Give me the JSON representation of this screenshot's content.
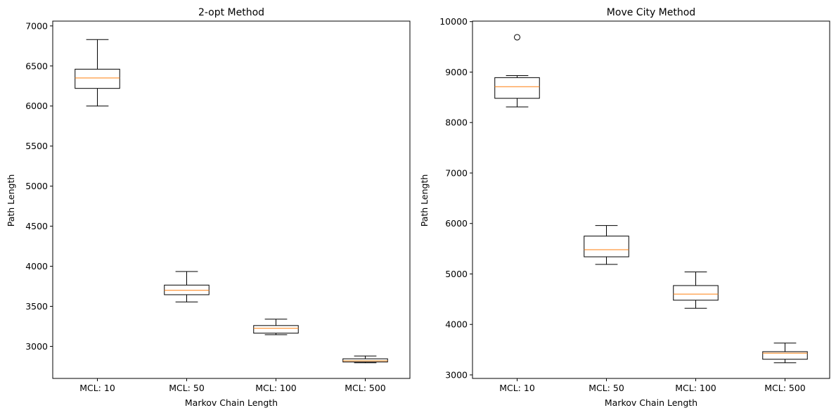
{
  "chart_data": [
    {
      "type": "box",
      "title": "2-opt Method",
      "xlabel": "Markov Chain Length",
      "ylabel": "Path Length",
      "ylim": [
        2600,
        7060
      ],
      "yticks": [
        3000,
        3500,
        4000,
        4500,
        5000,
        5500,
        6000,
        6500,
        7000
      ],
      "categories": [
        "MCL: 10",
        "MCL: 50",
        "MCL: 100",
        "MCL: 500"
      ],
      "boxes": [
        {
          "min": 6000,
          "q1": 6220,
          "median": 6350,
          "q3": 6460,
          "max": 6830,
          "outliers": []
        },
        {
          "min": 3555,
          "q1": 3645,
          "median": 3700,
          "q3": 3765,
          "max": 3935,
          "outliers": []
        },
        {
          "min": 3145,
          "q1": 3165,
          "median": 3225,
          "q3": 3260,
          "max": 3340,
          "outliers": []
        },
        {
          "min": 2795,
          "q1": 2805,
          "median": 2820,
          "q3": 2845,
          "max": 2880,
          "outliers": []
        }
      ],
      "grid": false
    },
    {
      "type": "box",
      "title": "Move City Method",
      "xlabel": "Markov Chain Length",
      "ylabel": "Path Length",
      "ylim": [
        2930,
        10010
      ],
      "yticks": [
        3000,
        4000,
        5000,
        6000,
        7000,
        8000,
        9000,
        10000
      ],
      "categories": [
        "MCL: 10",
        "MCL: 50",
        "MCL: 100",
        "MCL: 500"
      ],
      "boxes": [
        {
          "min": 8310,
          "q1": 8480,
          "median": 8710,
          "q3": 8890,
          "max": 8930,
          "outliers": [
            9690
          ]
        },
        {
          "min": 5190,
          "q1": 5340,
          "median": 5480,
          "q3": 5750,
          "max": 5960,
          "outliers": []
        },
        {
          "min": 4320,
          "q1": 4480,
          "median": 4600,
          "q3": 4770,
          "max": 5040,
          "outliers": []
        },
        {
          "min": 3240,
          "q1": 3310,
          "median": 3430,
          "q3": 3460,
          "max": 3630,
          "outliers": []
        }
      ],
      "grid": false
    }
  ],
  "colors": {
    "box": "#000000",
    "median": "#ff7f0e",
    "background": "#ffffff"
  }
}
